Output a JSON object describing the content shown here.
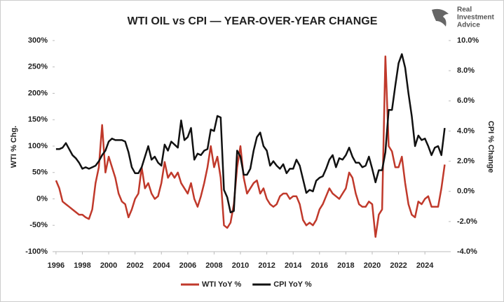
{
  "chart_data": {
    "type": "line",
    "title": "WTI OIL vs CPI — YEAR-OVER-YEAR CHANGE",
    "logo_text": [
      "Real",
      "Investment",
      "Advice"
    ],
    "ylabel": "WTI % Chg.",
    "y2label": "CPI % Change",
    "x": [
      1996,
      1996.25,
      1996.5,
      1996.75,
      1997,
      1997.25,
      1997.5,
      1997.75,
      1998,
      1998.25,
      1998.5,
      1998.75,
      1999,
      1999.25,
      1999.5,
      1999.75,
      2000,
      2000.25,
      2000.5,
      2000.75,
      2001,
      2001.25,
      2001.5,
      2001.75,
      2002,
      2002.25,
      2002.5,
      2002.75,
      2003,
      2003.25,
      2003.5,
      2003.75,
      2004,
      2004.25,
      2004.5,
      2004.75,
      2005,
      2005.25,
      2005.5,
      2005.75,
      2006,
      2006.25,
      2006.5,
      2006.75,
      2007,
      2007.25,
      2007.5,
      2007.75,
      2008,
      2008.25,
      2008.5,
      2008.75,
      2009,
      2009.25,
      2009.5,
      2009.75,
      2010,
      2010.25,
      2010.5,
      2010.75,
      2011,
      2011.25,
      2011.5,
      2011.75,
      2012,
      2012.25,
      2012.5,
      2012.75,
      2013,
      2013.25,
      2013.5,
      2013.75,
      2014,
      2014.25,
      2014.5,
      2014.75,
      2015,
      2015.25,
      2015.5,
      2015.75,
      2016,
      2016.25,
      2016.5,
      2016.75,
      2017,
      2017.25,
      2017.5,
      2017.75,
      2018,
      2018.25,
      2018.5,
      2018.75,
      2019,
      2019.25,
      2019.5,
      2019.75,
      2020,
      2020.25,
      2020.5,
      2020.75,
      2021,
      2021.25,
      2021.5,
      2021.75,
      2022,
      2022.25,
      2022.5,
      2022.75,
      2023,
      2023.25,
      2023.5,
      2023.75,
      2024,
      2024.25,
      2024.5,
      2024.75,
      2025,
      2025.25,
      2025.5
    ],
    "series": [
      {
        "name": "WTI YoY %",
        "color": "#c0392b",
        "axis": "y",
        "values": [
          35,
          20,
          -5,
          -10,
          -15,
          -20,
          -25,
          -30,
          -30,
          -35,
          -38,
          -20,
          30,
          60,
          140,
          50,
          80,
          60,
          40,
          10,
          -5,
          -10,
          -35,
          -20,
          0,
          10,
          60,
          20,
          30,
          10,
          0,
          5,
          30,
          70,
          40,
          50,
          40,
          50,
          30,
          20,
          10,
          30,
          0,
          -15,
          5,
          30,
          60,
          100,
          60,
          80,
          40,
          -50,
          -55,
          -45,
          -10,
          60,
          100,
          40,
          10,
          20,
          30,
          35,
          10,
          20,
          0,
          -10,
          -15,
          -10,
          5,
          10,
          10,
          0,
          5,
          5,
          -10,
          -40,
          -50,
          -45,
          -50,
          -40,
          -20,
          -10,
          5,
          20,
          10,
          5,
          0,
          10,
          20,
          50,
          40,
          10,
          -10,
          -15,
          -15,
          -5,
          -10,
          -72,
          -30,
          -20,
          270,
          100,
          90,
          60,
          60,
          80,
          30,
          -10,
          -30,
          -35,
          -5,
          -10,
          0,
          5,
          -15,
          -15,
          -15,
          20,
          65
        ]
      },
      {
        "name": "CPI YoY %",
        "color": "#111111",
        "axis": "y2",
        "values": [
          2.8,
          2.8,
          2.9,
          3.2,
          2.8,
          2.4,
          2.2,
          1.9,
          1.5,
          1.6,
          1.5,
          1.6,
          1.7,
          2.0,
          2.4,
          2.7,
          3.3,
          3.5,
          3.4,
          3.4,
          3.4,
          3.3,
          2.6,
          1.6,
          1.2,
          1.2,
          1.6,
          2.3,
          3.0,
          2.1,
          2.3,
          1.9,
          1.7,
          3.1,
          2.7,
          3.3,
          3.1,
          2.9,
          4.7,
          3.4,
          3.6,
          4.2,
          2.1,
          2.5,
          2.4,
          2.7,
          2.8,
          4.1,
          4.0,
          5.0,
          4.9,
          0.1,
          -0.4,
          -1.4,
          -1.3,
          2.7,
          2.3,
          1.1,
          1.1,
          1.5,
          2.7,
          3.6,
          3.9,
          3.0,
          2.7,
          1.7,
          2.0,
          1.7,
          1.5,
          1.8,
          1.2,
          1.5,
          1.5,
          2.1,
          1.7,
          0.8,
          -0.1,
          0.1,
          0.0,
          0.7,
          0.9,
          1.0,
          1.5,
          2.1,
          2.4,
          1.6,
          2.2,
          2.1,
          2.4,
          2.9,
          2.3,
          1.9,
          1.9,
          1.6,
          1.7,
          2.3,
          1.5,
          0.6,
          1.4,
          1.4,
          2.6,
          5.4,
          5.4,
          7.0,
          8.5,
          9.1,
          8.2,
          6.5,
          5.0,
          3.0,
          3.7,
          3.4,
          3.5,
          3.0,
          2.4,
          2.9,
          3.0,
          2.4,
          4.2
        ]
      }
    ],
    "xlim": [
      1995.9,
      2025.8
    ],
    "xticks": [
      1996,
      1998,
      2000,
      2002,
      2004,
      2006,
      2008,
      2010,
      2012,
      2014,
      2016,
      2018,
      2020,
      2022,
      2024
    ],
    "ylim": [
      -100,
      300
    ],
    "yticks": [
      {
        "value": -100,
        "label": "-100%"
      },
      {
        "value": -50,
        "label": "-50%"
      },
      {
        "value": 0,
        "label": "0%"
      },
      {
        "value": 50,
        "label": "50%"
      },
      {
        "value": 100,
        "label": "100%"
      },
      {
        "value": 150,
        "label": "150%"
      },
      {
        "value": 200,
        "label": "200%"
      },
      {
        "value": 250,
        "label": "250%"
      },
      {
        "value": 300,
        "label": "300%"
      }
    ],
    "y2lim": [
      -4,
      10
    ],
    "y2ticks": [
      {
        "value": -4,
        "label": "-4.0%"
      },
      {
        "value": -2,
        "label": "-2.0%"
      },
      {
        "value": 0,
        "label": "0.0%"
      },
      {
        "value": 2,
        "label": "2.0%"
      },
      {
        "value": 4,
        "label": "4.0%"
      },
      {
        "value": 6,
        "label": "6.0%"
      },
      {
        "value": 8,
        "label": "8.0%"
      },
      {
        "value": 10,
        "label": "10.0%"
      }
    ],
    "legend": "bottom"
  }
}
